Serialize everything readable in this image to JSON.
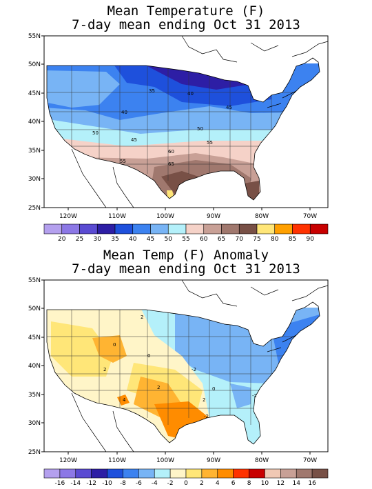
{
  "panels": [
    {
      "title_line1": "Mean Temperature (F)",
      "title_line2": "7-day mean ending Oct 31 2013",
      "lat_labels": [
        "55N",
        "50N",
        "45N",
        "40N",
        "35N",
        "30N",
        "25N"
      ],
      "lon_labels": [
        "120W",
        "110W",
        "100W",
        "90W",
        "80W",
        "70W"
      ],
      "contour_labels": [
        "35",
        "40",
        "40",
        "45",
        "50",
        "50",
        "45",
        "55",
        "55",
        "60",
        "65"
      ],
      "colorbar": {
        "colors": [
          "#b4a0ee",
          "#8c78e6",
          "#5a4bd2",
          "#2d1ea5",
          "#1e50dc",
          "#3c82f0",
          "#78b4f5",
          "#b4f0fa",
          "#f5d2c8",
          "#c8a096",
          "#a0786e",
          "#785046",
          "#ffe678",
          "#ffa000",
          "#ff3200",
          "#c80000"
        ],
        "labels": [
          "20",
          "25",
          "30",
          "35",
          "40",
          "45",
          "50",
          "55",
          "60",
          "65",
          "70",
          "75",
          "80",
          "85",
          "90"
        ]
      }
    },
    {
      "title_line1": "Mean Temp (F) Anomaly",
      "title_line2": "7-day mean ending Oct 31 2013",
      "lat_labels": [
        "55N",
        "50N",
        "45N",
        "40N",
        "35N",
        "30N",
        "25N"
      ],
      "lon_labels": [
        "120W",
        "110W",
        "100W",
        "90W",
        "80W",
        "70W"
      ],
      "contour_labels": [
        "2",
        "0",
        "2",
        "0",
        "2",
        "4",
        "-2",
        "2",
        "0",
        "-2",
        "-2"
      ],
      "colorbar": {
        "colors": [
          "#b4a0ee",
          "#8c78e6",
          "#5a4bd2",
          "#2d1ea5",
          "#1e50dc",
          "#3c82f0",
          "#78b4f5",
          "#b4f0fa",
          "#fff5c8",
          "#ffe678",
          "#ffb432",
          "#ff8c00",
          "#ff3200",
          "#c80000",
          "#f0c8b4",
          "#c8a096",
          "#a0786e",
          "#785046"
        ],
        "labels": [
          "-16",
          "-14",
          "-12",
          "-10",
          "-8",
          "-6",
          "-4",
          "-2",
          "0",
          "2",
          "4",
          "6",
          "8",
          "10",
          "12",
          "14",
          "16"
        ]
      }
    }
  ]
}
